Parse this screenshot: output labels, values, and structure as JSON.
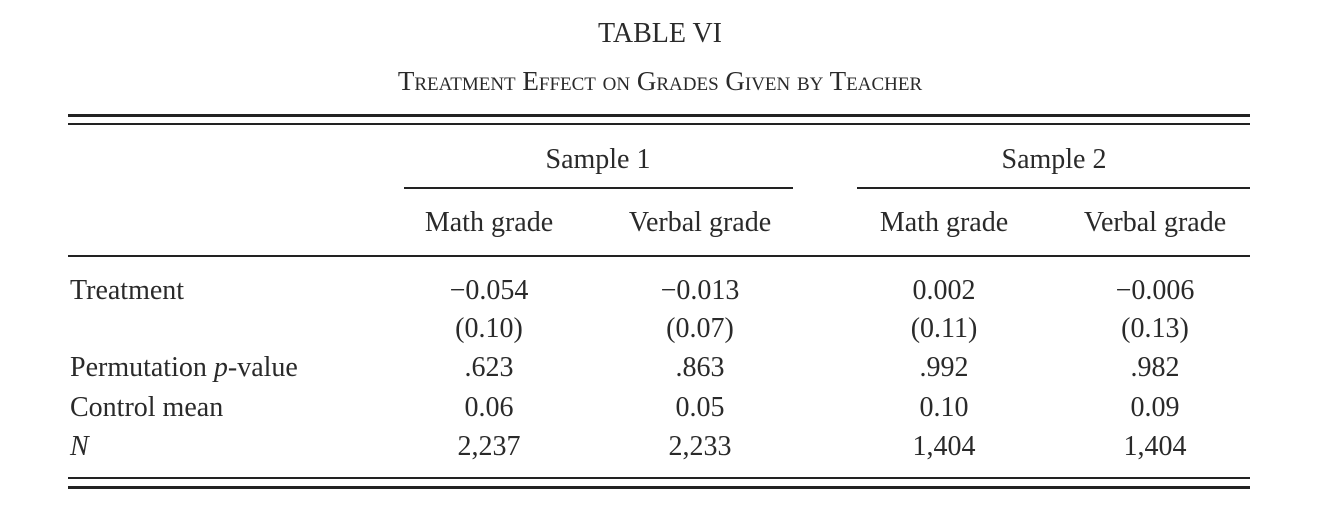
{
  "title": "TABLE VI",
  "subtitle": "Treatment Effect on Grades Given by Teacher",
  "table": {
    "groups": [
      "Sample 1",
      "Sample 2"
    ],
    "columns": [
      "Math grade",
      "Verbal grade",
      "Math grade",
      "Verbal grade"
    ],
    "rows": [
      {
        "label": [
          {
            "text": "Treatment",
            "italic": false
          }
        ],
        "cells": [
          "−0.054",
          "−0.013",
          "0.002",
          "−0.006"
        ]
      },
      {
        "label": [],
        "cells": [
          "(0.10)",
          "(0.07)",
          "(0.11)",
          "(0.13)"
        ]
      },
      {
        "label": [
          {
            "text": "Permutation ",
            "italic": false
          },
          {
            "text": "p",
            "italic": true
          },
          {
            "text": "-value",
            "italic": false
          }
        ],
        "cells": [
          ".623",
          ".863",
          ".992",
          ".982"
        ]
      },
      {
        "label": [
          {
            "text": "Control mean",
            "italic": false
          }
        ],
        "cells": [
          "0.06",
          "0.05",
          "0.10",
          "0.09"
        ]
      },
      {
        "label": [
          {
            "text": "N",
            "italic": true
          }
        ],
        "cells": [
          "2,237",
          "2,233",
          "1,404",
          "1,404"
        ]
      }
    ]
  }
}
